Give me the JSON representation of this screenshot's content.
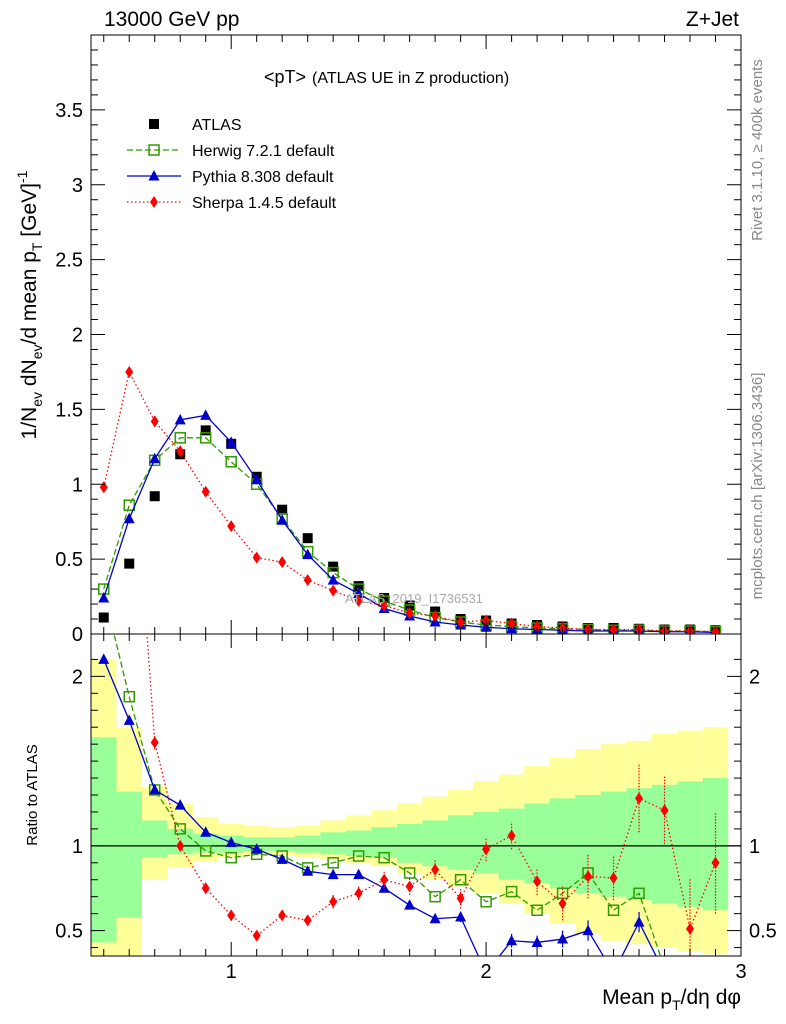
{
  "header": {
    "left": "13000 GeV pp",
    "right": "Z+Jet"
  },
  "side": {
    "rivet": "Rivet 3.1.10, ≥ 400k events",
    "mcplots": "mcplots.cern.ch [arXiv:1306.3436]"
  },
  "watermark": "ATLAS_2019_I1736531",
  "chart_data": {
    "type": "line",
    "title": "<pT>",
    "subtitle": "(ATLAS UE in Z production)",
    "ylabel": "1/N_ev dN_ev/d mean p_T [GeV]^-1",
    "xlabel": "Mean p_T/dη dφ",
    "ratio_ylabel": "Ratio to ATLAS",
    "xlim": [
      0.45,
      3.0
    ],
    "ylim": [
      0,
      4.0
    ],
    "ratio_ylim": [
      0.35,
      2.25
    ],
    "main_yticks": [
      "0",
      "0.5",
      "1",
      "1.5",
      "2",
      "2.5",
      "3",
      "3.5"
    ],
    "ratio_yticks": [
      "0.5",
      "1",
      "2"
    ],
    "xticks": [
      "1",
      "2",
      "3"
    ],
    "x": [
      0.5,
      0.6,
      0.7,
      0.8,
      0.9,
      1.0,
      1.1,
      1.2,
      1.3,
      1.4,
      1.5,
      1.6,
      1.7,
      1.8,
      1.9,
      2.0,
      2.1,
      2.2,
      2.3,
      2.4,
      2.5,
      2.6,
      2.7,
      2.8,
      2.9
    ],
    "series": [
      {
        "name": "ATLAS",
        "color": "#000000",
        "marker": "square",
        "values": [
          0.11,
          0.47,
          0.92,
          1.2,
          1.36,
          1.27,
          1.05,
          0.83,
          0.64,
          0.45,
          0.32,
          0.24,
          0.19,
          0.15,
          0.1,
          0.09,
          0.07,
          0.06,
          0.05,
          0.04,
          0.04,
          0.035,
          0.03,
          0.03,
          0.025
        ]
      },
      {
        "name": "Herwig 7.2.1 default",
        "color": "#339900",
        "marker": "open-square",
        "dash": "6,3",
        "values": [
          0.3,
          0.86,
          1.16,
          1.31,
          1.31,
          1.15,
          1.0,
          0.77,
          0.55,
          0.41,
          0.3,
          0.22,
          0.16,
          0.11,
          0.08,
          0.06,
          0.05,
          0.04,
          0.035,
          0.03,
          0.025,
          0.025,
          0.02,
          0.02,
          0.015
        ],
        "ratio": [
          2.5,
          1.88,
          1.33,
          1.1,
          0.97,
          0.93,
          0.95,
          0.94,
          0.87,
          0.9,
          0.94,
          0.93,
          0.84,
          0.7,
          0.8,
          0.67,
          0.73,
          0.62,
          0.72,
          0.84,
          0.62,
          0.72,
          0.28,
          0.25,
          0.25
        ]
      },
      {
        "name": "Pythia 8.308 default",
        "color": "#0000cc",
        "marker": "triangle",
        "values": [
          0.24,
          0.77,
          1.17,
          1.43,
          1.46,
          1.28,
          1.03,
          0.76,
          0.53,
          0.36,
          0.27,
          0.17,
          0.12,
          0.08,
          0.06,
          0.045,
          0.035,
          0.03,
          0.025,
          0.02,
          0.02,
          0.02,
          0.015,
          0.015,
          0.01
        ],
        "ratio": [
          2.1,
          1.74,
          1.33,
          1.24,
          1.08,
          1.02,
          0.98,
          0.92,
          0.85,
          0.83,
          0.83,
          0.75,
          0.65,
          0.57,
          0.58,
          0.25,
          0.44,
          0.43,
          0.45,
          0.5,
          0.25,
          0.55,
          0.25,
          0.25,
          0.25
        ],
        "ratio_err": [
          0,
          0,
          0,
          0,
          0,
          0,
          0,
          0,
          0.01,
          0.02,
          0.02,
          0.02,
          0.02,
          0.02,
          0.03,
          0,
          0.04,
          0.04,
          0.05,
          0.06,
          0,
          0.06,
          0,
          0,
          0
        ]
      },
      {
        "name": "Sherpa 1.4.5 default",
        "color": "#ff0000",
        "marker": "diamond",
        "dash": "1.5,2.5",
        "values": [
          0.98,
          1.75,
          1.42,
          1.22,
          0.95,
          0.72,
          0.51,
          0.48,
          0.36,
          0.29,
          0.22,
          0.19,
          0.14,
          0.12,
          0.08,
          0.09,
          0.07,
          0.05,
          0.04,
          0.03,
          0.03,
          0.03,
          0.02,
          0.02,
          0.015
        ],
        "ratio": [
          9.0,
          3.72,
          1.61,
          1.0,
          0.75,
          0.59,
          0.47,
          0.59,
          0.56,
          0.67,
          0.72,
          0.8,
          0.76,
          0.86,
          0.69,
          0.98,
          1.06,
          0.79,
          0.66,
          0.82,
          0.81,
          1.28,
          1.21,
          0.51,
          0.9
        ],
        "ratio_err": [
          0,
          0,
          0.04,
          0.03,
          0.03,
          0.03,
          0.02,
          0.02,
          0.03,
          0.04,
          0.04,
          0.05,
          0.05,
          0.06,
          0.06,
          0.07,
          0.08,
          0.08,
          0.1,
          0.13,
          0.13,
          0.2,
          0.2,
          0.3,
          0.3
        ]
      }
    ],
    "ratio_bands": {
      "x_edges": [
        0.45,
        0.55,
        0.65,
        0.75,
        0.85,
        0.95,
        1.05,
        1.15,
        1.25,
        1.35,
        1.45,
        1.55,
        1.65,
        1.75,
        1.85,
        1.95,
        2.05,
        2.15,
        2.25,
        2.35,
        2.45,
        2.55,
        2.65,
        2.75,
        2.85,
        2.95
      ],
      "inner": [
        [
          0.43,
          1.64
        ],
        [
          0.58,
          1.32
        ],
        [
          0.93,
          1.15
        ],
        [
          0.95,
          1.1
        ],
        [
          0.96,
          1.07
        ],
        [
          0.96,
          1.06
        ],
        [
          0.97,
          1.05
        ],
        [
          0.97,
          1.05
        ],
        [
          0.96,
          1.06
        ],
        [
          0.95,
          1.08
        ],
        [
          0.94,
          1.09
        ],
        [
          0.93,
          1.11
        ],
        [
          0.9,
          1.13
        ],
        [
          0.88,
          1.15
        ],
        [
          0.86,
          1.18
        ],
        [
          0.84,
          1.2
        ],
        [
          0.8,
          1.22
        ],
        [
          0.78,
          1.25
        ],
        [
          0.75,
          1.28
        ],
        [
          0.72,
          1.3
        ],
        [
          0.7,
          1.32
        ],
        [
          0.68,
          1.34
        ],
        [
          0.66,
          1.36
        ],
        [
          0.64,
          1.38
        ],
        [
          0.62,
          1.4
        ]
      ],
      "outer": [
        [
          0.35,
          2.1
        ],
        [
          0.35,
          1.7
        ],
        [
          0.8,
          1.35
        ],
        [
          0.87,
          1.25
        ],
        [
          0.91,
          1.17
        ],
        [
          0.93,
          1.13
        ],
        [
          0.94,
          1.12
        ],
        [
          0.94,
          1.11
        ],
        [
          0.93,
          1.12
        ],
        [
          0.92,
          1.15
        ],
        [
          0.9,
          1.18
        ],
        [
          0.88,
          1.21
        ],
        [
          0.84,
          1.25
        ],
        [
          0.8,
          1.29
        ],
        [
          0.76,
          1.33
        ],
        [
          0.72,
          1.38
        ],
        [
          0.66,
          1.42
        ],
        [
          0.6,
          1.47
        ],
        [
          0.54,
          1.52
        ],
        [
          0.48,
          1.57
        ],
        [
          0.44,
          1.6
        ],
        [
          0.42,
          1.62
        ],
        [
          0.4,
          1.66
        ],
        [
          0.38,
          1.68
        ],
        [
          0.36,
          1.7
        ]
      ]
    }
  }
}
